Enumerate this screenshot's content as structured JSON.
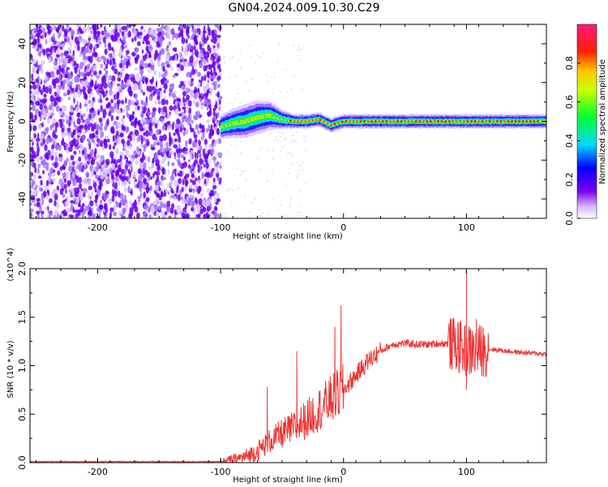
{
  "title": "GN04.2024.009.10.30.C29",
  "colors": {
    "snr_line": "#ee3333",
    "spectrogram_floor": "#6a00f0"
  },
  "chart_data": [
    {
      "type": "heatmap",
      "xlabel": "Height of straight line (km)",
      "ylabel": "Frequency (Hz)",
      "xlim": [
        -255,
        165
      ],
      "ylim": [
        -50,
        50
      ],
      "x_ticks": [
        -200,
        -100,
        0,
        100
      ],
      "y_ticks": [
        -40,
        -20,
        0,
        20,
        40
      ],
      "colorbar": {
        "label": "Normalized spectral amplitude",
        "range": [
          0,
          1
        ],
        "ticks": [
          "0.0",
          "0.2",
          "0.4",
          "0.6",
          "0.8"
        ],
        "colormap": "rainbow (white-purple-blue-cyan-green-yellow-red-magenta)"
      },
      "noise_region_x": [
        -255,
        -100
      ],
      "signal_track": {
        "x": [
          -100,
          -90,
          -80,
          -70,
          -60,
          -50,
          -40,
          -30,
          -20,
          -10,
          0,
          20,
          50,
          80,
          100,
          120,
          165
        ],
        "center_hz": [
          -3,
          -1,
          0,
          2,
          3,
          1,
          0,
          0,
          1,
          -2,
          0,
          0,
          0,
          0,
          0,
          0,
          0
        ],
        "halfwidth_hz": [
          5,
          6,
          7,
          7,
          6,
          4,
          3,
          3,
          3,
          3,
          3,
          3,
          3,
          3,
          3,
          3,
          3
        ]
      }
    },
    {
      "type": "line",
      "xlabel": "Height of straight line (km)",
      "ylabel": "SNR (10 * v/v)",
      "y_multiplier": "(x10^4)",
      "xlim": [
        -255,
        165
      ],
      "ylim": [
        0,
        2.0
      ],
      "x_ticks": [
        -200,
        -100,
        0,
        100
      ],
      "y_ticks": [
        "0.0",
        "0.5",
        "1.0",
        "1.5",
        "2.0"
      ],
      "series": [
        {
          "x": [
            -255,
            -200,
            -150,
            -100,
            -90,
            -80,
            -70,
            -60,
            -50,
            -40,
            -30,
            -20,
            -10,
            0,
            10,
            20,
            30,
            40,
            50,
            60,
            70,
            80,
            90,
            100,
            110,
            120,
            140,
            165
          ],
          "baseline": [
            0.01,
            0.01,
            0.01,
            0.01,
            0.03,
            0.06,
            0.12,
            0.22,
            0.3,
            0.36,
            0.45,
            0.55,
            0.65,
            0.75,
            0.9,
            1.05,
            1.15,
            1.22,
            1.23,
            1.22,
            1.22,
            1.23,
            1.22,
            1.15,
            1.15,
            1.17,
            1.14,
            1.12
          ],
          "spikes": [
            {
              "x": -62,
              "y": 0.78
            },
            {
              "x": -38,
              "y": 1.15
            },
            {
              "x": -7,
              "y": 1.4
            },
            {
              "x": -2,
              "y": 1.62
            },
            {
              "x": 93,
              "y": 1.45
            },
            {
              "x": 100,
              "y": 2.0
            },
            {
              "x": 108,
              "y": 1.48
            },
            {
              "x": 100,
              "y": 0.75
            }
          ]
        }
      ]
    }
  ]
}
